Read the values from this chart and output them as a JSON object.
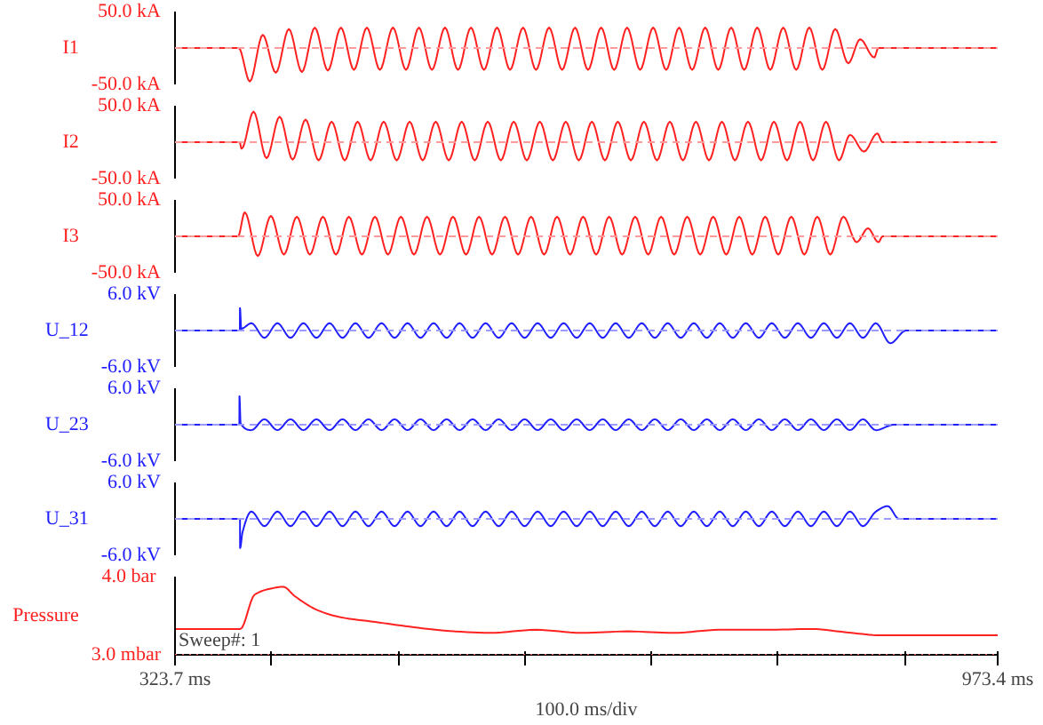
{
  "chart_data": [
    {
      "type": "line",
      "ylabel": "I1",
      "xlim": [
        323.7,
        973.4
      ],
      "ylim": [
        -50,
        50
      ],
      "yticks": [
        {
          "value": 50,
          "label": "50.0 kA"
        },
        {
          "value": -50,
          "label": "-50.0 kA"
        }
      ],
      "tick_labels": "y",
      "grid": false,
      "ref_lines": [
        {
          "axis": "y",
          "value": 0,
          "line_style": "dashed",
          "color": "#ff9a9a"
        }
      ],
      "series": [
        {
          "color": "#ff2020",
          "x": [
            323.7,
            374.0,
            382.8,
            393.0,
            403.3,
            413.6,
            423.9,
            434.1,
            444.4,
            454.7,
            465.0,
            475.2,
            485.5,
            495.8,
            506.1,
            516.3,
            526.6,
            536.9,
            547.2,
            557.4,
            567.7,
            578.0,
            588.3,
            598.5,
            608.8,
            619.1,
            629.4,
            639.6,
            649.9,
            660.2,
            670.5,
            680.7,
            691.0,
            701.3,
            711.6,
            721.8,
            732.1,
            742.4,
            752.7,
            762.9,
            773.2,
            783.5,
            793.8,
            804.0,
            814.3,
            824.6,
            834.9,
            845.1,
            855.4,
            864.8,
            875.9,
            879.2,
            973.4
          ],
          "values": [
            0,
            0,
            -46,
            18,
            -34,
            26,
            -33,
            28,
            -31,
            28,
            -30,
            28,
            -30,
            28,
            -30,
            28,
            -30,
            28,
            -30,
            28,
            -30,
            28,
            -30,
            28,
            -30,
            28,
            -30,
            28,
            -30,
            28,
            -30,
            28,
            -30,
            28,
            -30,
            28,
            -30,
            28,
            -30,
            28,
            -30,
            28,
            -30,
            28,
            -30,
            28,
            -30,
            26,
            -21,
            12,
            -13,
            0,
            0
          ]
        }
      ]
    },
    {
      "type": "line",
      "ylabel": "I2",
      "xlim": [
        323.7,
        973.4
      ],
      "ylim": [
        -50,
        50
      ],
      "yticks": [
        {
          "value": 50,
          "label": "50.0 kA"
        },
        {
          "value": -50,
          "label": "-50.0 kA"
        }
      ],
      "tick_labels": "y",
      "grid": false,
      "ref_lines": [
        {
          "axis": "y",
          "value": 0,
          "line_style": "dashed",
          "color": "#ff9a9a"
        }
      ],
      "series": [
        {
          "color": "#ff2020",
          "x": [
            323.7,
            374.7,
            376.3,
            385.7,
            396.0,
            406.3,
            416.6,
            426.8,
            437.1,
            447.4,
            457.7,
            467.9,
            478.2,
            488.5,
            498.8,
            509.0,
            519.3,
            529.6,
            539.9,
            550.1,
            560.4,
            570.7,
            581.0,
            591.2,
            601.5,
            611.8,
            622.1,
            632.3,
            642.6,
            652.9,
            663.2,
            673.4,
            683.7,
            694.0,
            704.3,
            714.5,
            724.8,
            735.1,
            745.4,
            755.6,
            765.9,
            776.2,
            786.5,
            796.7,
            807.0,
            817.3,
            827.6,
            837.8,
            848.1,
            856.8,
            867.8,
            878.3,
            882.5,
            973.4
          ],
          "values": [
            0,
            0,
            -9,
            42,
            -22,
            35,
            -24,
            31,
            -25,
            28,
            -25,
            28,
            -25,
            28,
            -25,
            28,
            -25,
            28,
            -25,
            28,
            -25,
            28,
            -25,
            28,
            -25,
            28,
            -25,
            28,
            -25,
            28,
            -25,
            28,
            -25,
            28,
            -25,
            28,
            -25,
            28,
            -25,
            28,
            -25,
            28,
            -25,
            28,
            -25,
            28,
            -25,
            28,
            -25,
            10,
            -13,
            12,
            0,
            0
          ]
        }
      ]
    },
    {
      "type": "line",
      "ylabel": "I3",
      "xlim": [
        323.7,
        973.4
      ],
      "ylim": [
        -50,
        50
      ],
      "yticks": [
        {
          "value": 50,
          "label": "50.0 kA"
        },
        {
          "value": -50,
          "label": "-50.0 kA"
        }
      ],
      "tick_labels": "y",
      "grid": false,
      "ref_lines": [
        {
          "axis": "y",
          "value": 0,
          "line_style": "dashed",
          "color": "#ff9a9a"
        }
      ],
      "series": [
        {
          "color": "#ff2020",
          "x": [
            323.7,
            373.5,
            378.8,
            389.1,
            399.4,
            409.7,
            419.9,
            430.2,
            440.5,
            450.8,
            461.0,
            471.3,
            481.6,
            491.9,
            502.1,
            512.4,
            522.7,
            533.0,
            543.2,
            553.5,
            563.8,
            574.1,
            584.3,
            594.6,
            604.9,
            615.2,
            625.4,
            635.7,
            646.0,
            656.3,
            666.5,
            676.8,
            687.1,
            697.4,
            707.6,
            717.9,
            728.2,
            738.5,
            748.7,
            759.0,
            769.3,
            779.6,
            789.8,
            800.1,
            810.4,
            820.7,
            830.9,
            841.2,
            851.5,
            862.0,
            871.0,
            879.2,
            882.5,
            973.4
          ],
          "values": [
            0,
            0,
            33,
            -27,
            28,
            -25,
            27,
            -25,
            27,
            -25,
            27,
            -25,
            27,
            -25,
            27,
            -25,
            27,
            -25,
            27,
            -25,
            27,
            -25,
            27,
            -25,
            27,
            -25,
            27,
            -25,
            27,
            -25,
            27,
            -25,
            27,
            -25,
            27,
            -25,
            27,
            -25,
            27,
            -25,
            27,
            -25,
            27,
            -25,
            27,
            -25,
            27,
            -25,
            27,
            -8,
            11,
            -8,
            0,
            0
          ]
        }
      ]
    },
    {
      "type": "line",
      "ylabel": "U_12",
      "xlim": [
        323.7,
        973.4
      ],
      "ylim": [
        -6,
        6
      ],
      "yticks": [
        {
          "value": 6,
          "label": "6.0 kV"
        },
        {
          "value": -6,
          "label": "-6.0 kV"
        }
      ],
      "tick_labels": "y",
      "grid": false,
      "ref_lines": [
        {
          "axis": "y",
          "value": 0,
          "line_style": "dashed",
          "color": "#9a9aff"
        }
      ],
      "series": [
        {
          "color": "#2020ff",
          "x": [
            323.7,
            374.9,
            375.0,
            376.0,
            384.0,
            394.3,
            404.6,
            414.9,
            425.1,
            435.4,
            445.7,
            456.0,
            466.2,
            476.5,
            486.8,
            497.1,
            507.3,
            517.6,
            527.9,
            538.2,
            548.4,
            558.7,
            569.0,
            579.3,
            589.5,
            599.8,
            610.1,
            620.4,
            630.6,
            640.9,
            651.2,
            661.5,
            671.7,
            682.0,
            692.3,
            702.6,
            712.8,
            723.1,
            733.4,
            743.7,
            753.9,
            764.2,
            774.5,
            784.8,
            795.0,
            805.3,
            815.6,
            825.9,
            836.1,
            846.4,
            856.7,
            867.0,
            877.2,
            888.6,
            901.0,
            973.4
          ],
          "values": [
            0,
            0,
            3.7,
            0.3,
            1.2,
            -1.2,
            1.2,
            -1.2,
            1.2,
            -1.2,
            1.2,
            -1.2,
            1.2,
            -1.2,
            1.2,
            -1.2,
            1.2,
            -1.2,
            1.2,
            -1.2,
            1.2,
            -1.2,
            1.2,
            -1.2,
            1.2,
            -1.2,
            1.2,
            -1.2,
            1.2,
            -1.2,
            1.2,
            -1.2,
            1.2,
            -1.2,
            1.2,
            -1.2,
            1.2,
            -1.2,
            1.2,
            -1.2,
            1.2,
            -1.2,
            1.2,
            -1.2,
            1.2,
            -1.2,
            1.2,
            -1.2,
            1.2,
            -1.2,
            1.2,
            -1.2,
            1.2,
            -2.1,
            0,
            0
          ]
        }
      ]
    },
    {
      "type": "line",
      "ylabel": "U_23",
      "xlim": [
        323.7,
        973.4
      ],
      "ylim": [
        -6,
        6
      ],
      "yticks": [
        {
          "value": 6,
          "label": "6.0 kV"
        },
        {
          "value": -6,
          "label": "-6.0 kV"
        }
      ],
      "tick_labels": "y",
      "grid": false,
      "ref_lines": [
        {
          "axis": "y",
          "value": 0,
          "line_style": "dashed",
          "color": "#9a9aff"
        }
      ],
      "series": [
        {
          "color": "#2020ff",
          "x": [
            323.7,
            374.5,
            374.6,
            375.5,
            384.0,
            394.3,
            404.6,
            414.9,
            425.1,
            435.4,
            445.7,
            456.0,
            466.2,
            476.5,
            486.8,
            497.1,
            507.3,
            517.6,
            527.9,
            538.2,
            548.4,
            558.7,
            569.0,
            579.3,
            589.5,
            599.8,
            610.1,
            620.4,
            630.6,
            640.9,
            651.2,
            661.5,
            671.7,
            682.0,
            692.3,
            702.6,
            712.8,
            723.1,
            733.4,
            743.7,
            753.9,
            764.2,
            774.5,
            784.8,
            795.0,
            805.3,
            815.6,
            825.9,
            836.1,
            846.4,
            856.7,
            867.0,
            877.2,
            891.4,
            973.4
          ],
          "values": [
            0,
            0,
            4.7,
            0.2,
            -0.9,
            0.9,
            -0.9,
            0.9,
            -0.9,
            0.9,
            -0.9,
            0.9,
            -0.9,
            0.9,
            -0.9,
            0.9,
            -0.9,
            0.9,
            -0.9,
            0.9,
            -0.9,
            0.9,
            -0.9,
            0.9,
            -0.9,
            0.9,
            -0.9,
            0.9,
            -0.9,
            0.9,
            -0.9,
            0.9,
            -0.9,
            0.9,
            -0.9,
            0.9,
            -0.9,
            0.9,
            -0.9,
            0.9,
            -0.9,
            0.9,
            -0.9,
            0.9,
            -0.9,
            0.9,
            -0.9,
            0.9,
            -0.9,
            0.9,
            -0.9,
            0.9,
            -0.9,
            0,
            0
          ]
        }
      ]
    },
    {
      "type": "line",
      "ylabel": "U_31",
      "xlim": [
        323.7,
        973.4
      ],
      "ylim": [
        -6,
        6
      ],
      "yticks": [
        {
          "value": 6,
          "label": "6.0 kV"
        },
        {
          "value": -6,
          "label": "-6.0 kV"
        }
      ],
      "tick_labels": "y",
      "grid": false,
      "ref_lines": [
        {
          "axis": "y",
          "value": 0,
          "line_style": "dashed",
          "color": "#9a9aff"
        }
      ],
      "series": [
        {
          "color": "#2020ff",
          "x": [
            323.7,
            375.0,
            375.1,
            377.0,
            384.0,
            394.3,
            404.6,
            414.9,
            425.1,
            435.4,
            445.7,
            456.0,
            466.2,
            476.5,
            486.8,
            497.1,
            507.3,
            517.6,
            527.9,
            538.2,
            548.4,
            558.7,
            569.0,
            579.3,
            589.5,
            599.8,
            610.1,
            620.4,
            630.6,
            640.9,
            651.2,
            661.5,
            671.7,
            682.0,
            692.3,
            702.6,
            712.8,
            723.1,
            733.4,
            743.7,
            753.9,
            764.2,
            774.5,
            784.8,
            795.0,
            805.3,
            815.6,
            825.9,
            836.1,
            846.4,
            856.7,
            867.0,
            877.2,
            886.5,
            895.4,
            973.4
          ],
          "values": [
            0,
            0,
            -4.8,
            -2.2,
            1.2,
            -1.2,
            1.2,
            -1.2,
            1.2,
            -1.2,
            1.2,
            -1.2,
            1.2,
            -1.2,
            1.2,
            -1.2,
            1.2,
            -1.2,
            1.2,
            -1.2,
            1.2,
            -1.2,
            1.2,
            -1.2,
            1.2,
            -1.2,
            1.2,
            -1.2,
            1.2,
            -1.2,
            1.2,
            -1.2,
            1.2,
            -1.2,
            1.2,
            -1.2,
            1.2,
            -1.2,
            1.2,
            -1.2,
            1.2,
            -1.2,
            1.2,
            -1.2,
            1.2,
            -1.2,
            1.2,
            -1.2,
            1.2,
            -1.2,
            1.2,
            -1.2,
            1.2,
            2.1,
            0,
            0
          ]
        }
      ]
    },
    {
      "type": "line",
      "ylabel": "Pressure",
      "xlabel": "100.0 ms/div",
      "annotations": [
        "Sweep#: 1"
      ],
      "xlim": [
        323.7,
        973.4
      ],
      "ylim": [
        3.0,
        4.0
      ],
      "yticks": [
        {
          "value": 4.0,
          "label": "4.0  bar"
        },
        {
          "value": 3.0,
          "label": "3.0 mbar"
        }
      ],
      "xticks": [
        {
          "value": 323.7,
          "label": "323.7 ms"
        },
        {
          "value": 400,
          "label": null
        },
        {
          "value": 500,
          "label": null
        },
        {
          "value": 600,
          "label": null
        },
        {
          "value": 700,
          "label": null
        },
        {
          "value": 800,
          "label": null
        },
        {
          "value": 900,
          "label": null
        },
        {
          "value": 973.4,
          "label": "973.4 ms"
        }
      ],
      "grid": false,
      "ref_lines": [
        {
          "axis": "y",
          "value": 3.0,
          "line_style": "dotted",
          "color": "#ff6060"
        }
      ],
      "series": [
        {
          "color": "#ff2020",
          "x": [
            323.7,
            375.2,
            386.6,
            400.2,
            409.2,
            418.3,
            436.4,
            454.6,
            481.8,
            509.0,
            536.1,
            572.5,
            608.7,
            644.9,
            681.1,
            717.5,
            753.7,
            789.9,
            826.3,
            857.9,
            880.6,
            973.4
          ],
          "values": [
            3.33,
            3.33,
            3.77,
            3.85,
            3.87,
            3.75,
            3.57,
            3.48,
            3.42,
            3.36,
            3.31,
            3.28,
            3.32,
            3.28,
            3.3,
            3.28,
            3.32,
            3.32,
            3.33,
            3.28,
            3.25,
            3.25
          ]
        }
      ]
    }
  ]
}
